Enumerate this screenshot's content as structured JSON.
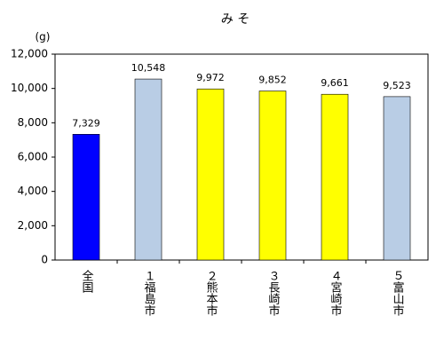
{
  "chart_data": {
    "type": "bar",
    "title": "み そ",
    "y_label": "(g)",
    "categories": [
      "全国",
      "１福島市",
      "２熊本市",
      "３長崎市",
      "４宮崎市",
      "５富山市"
    ],
    "values": [
      7329,
      10548,
      9972,
      9852,
      9661,
      9523
    ],
    "value_labels": [
      "7,329",
      "10,548",
      "9,972",
      "9,852",
      "9,661",
      "9,523"
    ],
    "colors": [
      "#0000ff",
      "#b9cde5",
      "#ffff00",
      "#ffff00",
      "#ffff00",
      "#b9cde5"
    ],
    "ylim": [
      0,
      12000
    ],
    "yticks": [
      0,
      {
        "value": 2000,
        "label": "2,000"
      },
      {
        "value": 4000,
        "label": "4,000"
      },
      {
        "value": 6000,
        "label": "6,000"
      },
      {
        "value": 8000,
        "label": "8,000"
      },
      {
        "value": 10000,
        "label": "10,000"
      },
      {
        "value": 12000,
        "label": "12,000"
      }
    ],
    "grid": false
  }
}
